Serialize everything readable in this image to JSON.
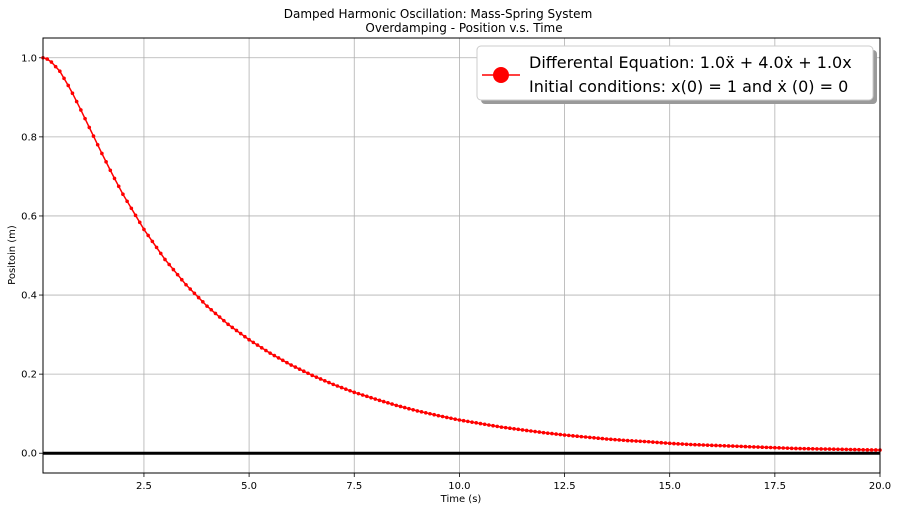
{
  "chart_data": {
    "type": "line",
    "title": "Damped Harmonic Oscillation: Mass-Spring System",
    "subtitle": "Overdamping - Position v.s. Time",
    "xlabel": "Time (s)",
    "ylabel": "Positoin (m)",
    "xlim": [
      0.1,
      20.0
    ],
    "ylim": [
      -0.05,
      1.05
    ],
    "xticks": [
      "2.5",
      "5.0",
      "7.5",
      "10.0",
      "12.5",
      "15.0",
      "17.5",
      "20.0"
    ],
    "yticks": [
      "0.0",
      "0.2",
      "0.4",
      "0.6",
      "0.8",
      "1.0"
    ],
    "grid": true,
    "legend_position": "top-right",
    "legend": {
      "line1": "Differental Equation: 1.0ẍ + 4.0ẋ + 1.0x",
      "line2": "Initial conditions: x(0) = 1 and ẋ (0) = 0"
    },
    "series": [
      {
        "color": "#ff0000",
        "marker": "circle",
        "x": [
          0.1,
          0.25,
          0.5,
          0.75,
          1.0,
          1.25,
          1.5,
          1.75,
          2.0,
          2.5,
          3.0,
          3.5,
          4.0,
          4.5,
          5.0,
          5.5,
          6.0,
          6.5,
          7.0,
          7.5,
          8.0,
          8.5,
          9.0,
          9.5,
          10.0,
          10.5,
          11.0,
          11.5,
          12.0,
          12.5,
          13.0,
          13.5,
          14.0,
          14.5,
          15.0,
          15.5,
          16.0,
          16.5,
          17.0,
          17.5,
          18.0,
          18.5,
          19.0,
          19.5,
          20.0
        ],
        "y": [
          1.0,
          0.995,
          0.966,
          0.921,
          0.868,
          0.813,
          0.758,
          0.705,
          0.655,
          0.566,
          0.49,
          0.426,
          0.372,
          0.326,
          0.287,
          0.253,
          0.223,
          0.197,
          0.174,
          0.154,
          0.137,
          0.121,
          0.107,
          0.095,
          0.084,
          0.075,
          0.066,
          0.059,
          0.052,
          0.046,
          0.041,
          0.036,
          0.032,
          0.029,
          0.025,
          0.022,
          0.02,
          0.018,
          0.016,
          0.014,
          0.012,
          0.011,
          0.01,
          0.009,
          0.008
        ]
      }
    ],
    "reference_line": {
      "y": 0.0,
      "color": "#000000"
    }
  }
}
